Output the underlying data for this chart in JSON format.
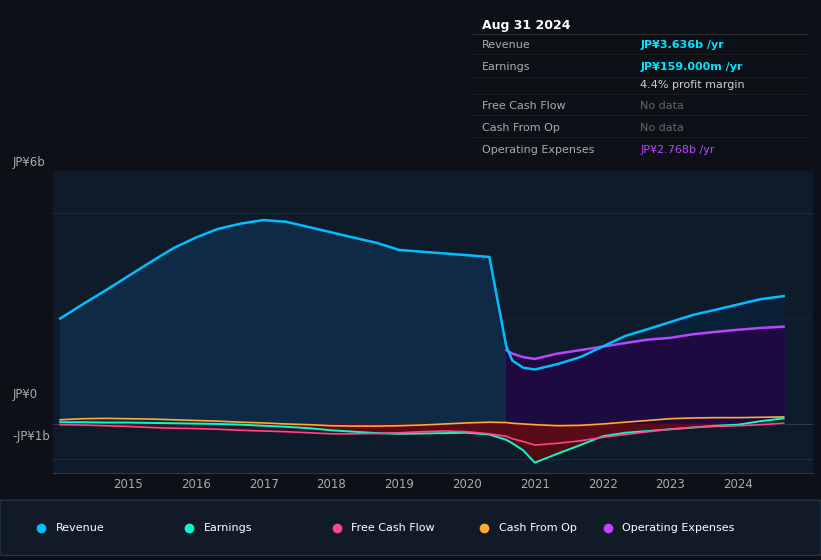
{
  "background_color": "#0d1117",
  "plot_bg": "#0d1b2a",
  "years": [
    2014.0,
    2014.33,
    2014.67,
    2015.0,
    2015.33,
    2015.67,
    2016.0,
    2016.33,
    2016.67,
    2017.0,
    2017.33,
    2017.67,
    2018.0,
    2018.33,
    2018.67,
    2019.0,
    2019.33,
    2019.67,
    2020.0,
    2020.33,
    2020.58,
    2020.67,
    2020.83,
    2021.0,
    2021.33,
    2021.67,
    2022.0,
    2022.33,
    2022.67,
    2023.0,
    2023.33,
    2023.67,
    2024.0,
    2024.33,
    2024.67
  ],
  "revenue": [
    3.0,
    3.4,
    3.8,
    4.2,
    4.6,
    5.0,
    5.3,
    5.55,
    5.7,
    5.8,
    5.75,
    5.6,
    5.45,
    5.3,
    5.15,
    4.95,
    4.9,
    4.85,
    4.8,
    4.75,
    2.2,
    1.8,
    1.6,
    1.55,
    1.7,
    1.9,
    2.2,
    2.5,
    2.7,
    2.9,
    3.1,
    3.25,
    3.4,
    3.55,
    3.636
  ],
  "earnings": [
    0.05,
    0.05,
    0.04,
    0.04,
    0.03,
    0.02,
    0.01,
    0.0,
    -0.02,
    -0.05,
    -0.08,
    -0.12,
    -0.18,
    -0.22,
    -0.26,
    -0.28,
    -0.27,
    -0.26,
    -0.25,
    -0.3,
    -0.45,
    -0.55,
    -0.75,
    -1.1,
    -0.85,
    -0.6,
    -0.35,
    -0.25,
    -0.2,
    -0.15,
    -0.1,
    -0.05,
    -0.02,
    0.08,
    0.159
  ],
  "free_cash_flow": [
    -0.02,
    -0.03,
    -0.05,
    -0.07,
    -0.1,
    -0.12,
    -0.13,
    -0.15,
    -0.18,
    -0.2,
    -0.22,
    -0.25,
    -0.28,
    -0.28,
    -0.27,
    -0.25,
    -0.22,
    -0.2,
    -0.22,
    -0.28,
    -0.35,
    -0.42,
    -0.5,
    -0.6,
    -0.55,
    -0.48,
    -0.38,
    -0.3,
    -0.22,
    -0.15,
    -0.1,
    -0.07,
    -0.05,
    -0.02,
    0.02
  ],
  "cash_from_op": [
    0.12,
    0.15,
    0.16,
    0.15,
    0.14,
    0.12,
    0.1,
    0.08,
    0.05,
    0.03,
    0.0,
    -0.02,
    -0.05,
    -0.06,
    -0.06,
    -0.05,
    -0.03,
    0.0,
    0.03,
    0.05,
    0.04,
    0.02,
    0.0,
    -0.02,
    -0.05,
    -0.04,
    0.0,
    0.05,
    0.1,
    0.15,
    0.17,
    0.18,
    0.18,
    0.19,
    0.2
  ],
  "op_expenses_x": [
    2020.58,
    2020.67,
    2020.83,
    2021.0,
    2021.33,
    2021.67,
    2022.0,
    2022.33,
    2022.67,
    2023.0,
    2023.33,
    2023.67,
    2024.0,
    2024.33,
    2024.67
  ],
  "op_expenses_y": [
    2.1,
    2.0,
    1.9,
    1.85,
    2.0,
    2.1,
    2.2,
    2.3,
    2.4,
    2.45,
    2.55,
    2.62,
    2.68,
    2.73,
    2.768
  ],
  "revenue_color": "#00bfff",
  "revenue_fill": "#0e2a45",
  "revenue_fill_highlight": "#0a1f38",
  "earnings_color": "#00ffcc",
  "fcf_color": "#ff4488",
  "cash_op_color": "#ffaa33",
  "op_exp_color": "#bb44ff",
  "op_exp_fill": "#1e0a40",
  "earnings_neg_fill": "#5a0a10",
  "earnings_pos_fill": "#0a3a1a",
  "highlight_x": 2020.58,
  "ylim": [
    -1.4,
    7.2
  ],
  "xlim": [
    2013.9,
    2025.1
  ],
  "ytick_values": [
    6,
    0,
    -1
  ],
  "ytick_labels": [
    "JP¥6b",
    "JP¥0",
    "-JP¥1b"
  ],
  "xtick_values": [
    2015,
    2016,
    2017,
    2018,
    2019,
    2020,
    2021,
    2022,
    2023,
    2024
  ],
  "info_box_title": "Aug 31 2024",
  "info_rows": [
    {
      "label": "Revenue",
      "value": "JP¥3.636b /yr",
      "value_color": "#00e5ff"
    },
    {
      "label": "Earnings",
      "value": "JP¥159.000m /yr",
      "value_color": "#00e5ff"
    },
    {
      "label": "",
      "value": "4.4% profit margin",
      "value_color": "#cccccc"
    },
    {
      "label": "Free Cash Flow",
      "value": "No data",
      "value_color": "#666666"
    },
    {
      "label": "Cash From Op",
      "value": "No data",
      "value_color": "#666666"
    },
    {
      "label": "Operating Expenses",
      "value": "JP¥2.768b /yr",
      "value_color": "#bb44ff"
    }
  ],
  "legend_items": [
    {
      "label": "Revenue",
      "color": "#00bfff"
    },
    {
      "label": "Earnings",
      "color": "#00ffcc"
    },
    {
      "label": "Free Cash Flow",
      "color": "#ff4488"
    },
    {
      "label": "Cash From Op",
      "color": "#ffaa33"
    },
    {
      "label": "Operating Expenses",
      "color": "#bb44ff"
    }
  ]
}
